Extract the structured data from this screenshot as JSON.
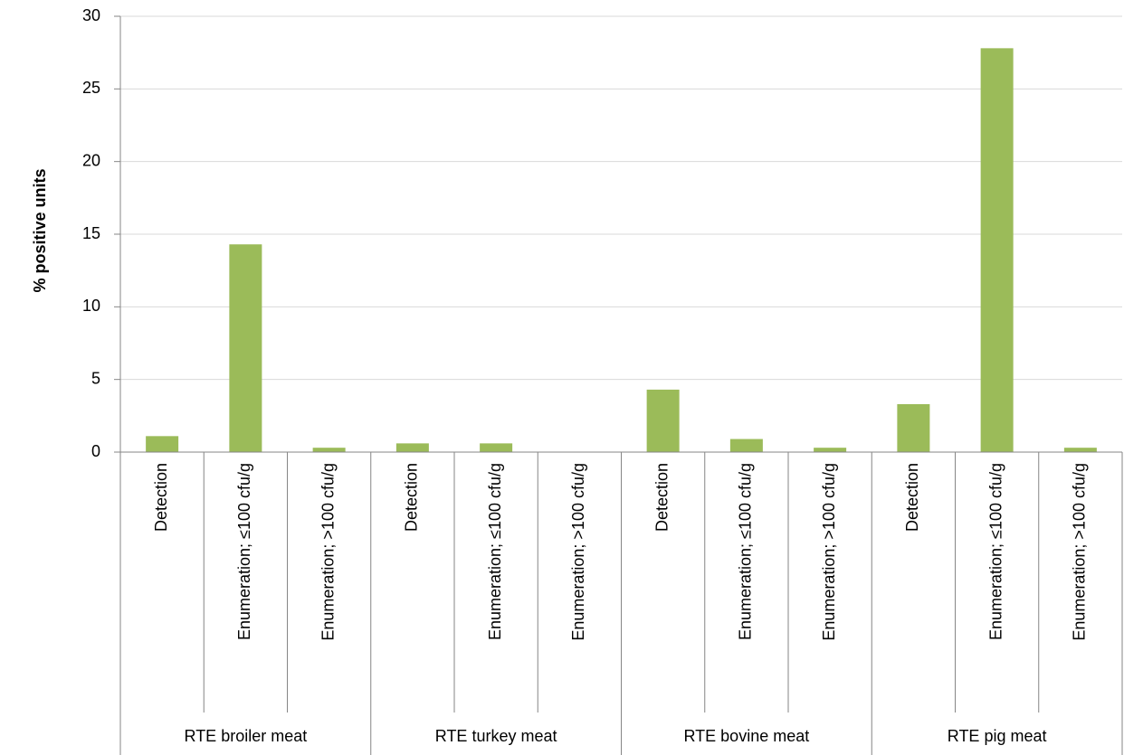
{
  "chart_data": {
    "type": "bar",
    "y_label": "% positive units",
    "categories": [
      "Detection",
      "Enumeration; ≤100 cfu/g",
      "Enumeration; >100 cfu/g",
      "Detection",
      "Enumeration; ≤100 cfu/g",
      "Enumeration; >100 cfu/g",
      "Detection",
      "Enumeration; ≤100 cfu/g",
      "Enumeration; >100 cfu/g",
      "Detection",
      "Enumeration; ≤100 cfu/g",
      "Enumeration; >100 cfu/g"
    ],
    "groups": [
      "RTE broiler meat",
      "RTE turkey meat",
      "RTE bovine meat",
      "RTE pig meat"
    ],
    "values": [
      1.1,
      14.3,
      0.3,
      0.6,
      0.6,
      0,
      4.3,
      0.9,
      0.3,
      3.3,
      27.8,
      0.3
    ],
    "color": "#9bbb59",
    "ylim": [
      0,
      30
    ],
    "yticks": [
      0,
      5,
      10,
      15,
      20,
      25,
      30
    ],
    "grid": true
  }
}
